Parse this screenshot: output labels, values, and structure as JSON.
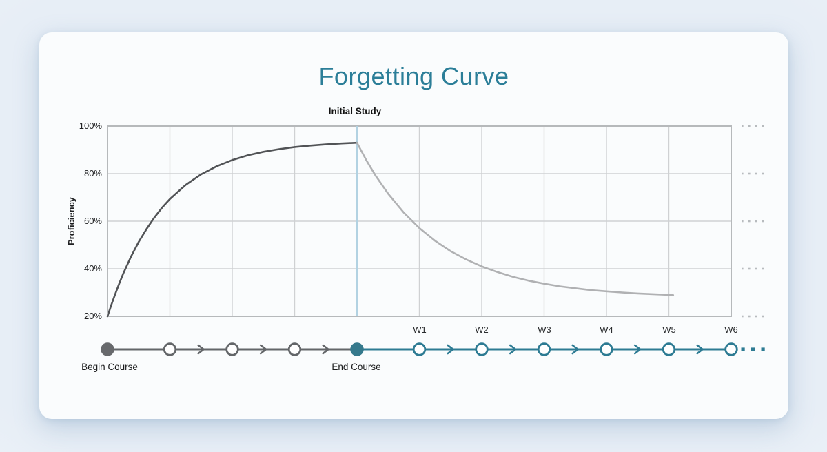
{
  "chart_data": {
    "type": "line",
    "title": "Forgetting Curve",
    "ylabel": "Proficiency",
    "ylim": [
      20,
      100
    ],
    "yticks": [
      "100%",
      "80%",
      "60%",
      "40%",
      "20%"
    ],
    "ytick_values": [
      100,
      80,
      60,
      40,
      20
    ],
    "grid": true,
    "annotation": "Initial Study",
    "annotation_x_unit": 4,
    "x_axis_note": "x in grid-column units: 0 = course start, 4 = Initial Study / End Course, 5..10 = W1..W6",
    "week_labels": [
      "W1",
      "W2",
      "W3",
      "W4",
      "W5",
      "W6"
    ],
    "series": [
      {
        "name": "learning-curve",
        "color": "#515356",
        "points": [
          [
            0,
            20
          ],
          [
            0.06,
            24.7
          ],
          [
            0.12,
            29.1
          ],
          [
            0.19,
            33.9
          ],
          [
            0.25,
            37.8
          ],
          [
            0.375,
            45.0
          ],
          [
            0.5,
            51.3
          ],
          [
            0.625,
            56.7
          ],
          [
            0.75,
            61.5
          ],
          [
            0.875,
            65.7
          ],
          [
            1,
            69.3
          ],
          [
            1.25,
            75.2
          ],
          [
            1.5,
            79.7
          ],
          [
            1.75,
            83.1
          ],
          [
            2,
            85.7
          ],
          [
            2.25,
            87.7
          ],
          [
            2.5,
            89.2
          ],
          [
            2.75,
            90.3
          ],
          [
            3,
            91.2
          ],
          [
            3.25,
            91.8
          ],
          [
            3.5,
            92.3
          ],
          [
            3.75,
            92.7
          ],
          [
            4,
            93
          ]
        ]
      },
      {
        "name": "forgetting-curve",
        "color": "#b0b1b3",
        "points": [
          [
            4,
            93
          ],
          [
            4.15,
            85.6
          ],
          [
            4.3,
            79.1
          ],
          [
            4.5,
            71.5
          ],
          [
            4.75,
            63.6
          ],
          [
            5,
            57.1
          ],
          [
            5.25,
            51.8
          ],
          [
            5.5,
            47.4
          ],
          [
            5.75,
            43.9
          ],
          [
            6,
            41.0
          ],
          [
            6.25,
            38.6
          ],
          [
            6.5,
            36.6
          ],
          [
            6.75,
            35.0
          ],
          [
            7,
            33.7
          ],
          [
            7.25,
            32.6
          ],
          [
            7.5,
            31.8
          ],
          [
            7.75,
            31.0
          ],
          [
            8,
            30.5
          ],
          [
            8.25,
            30.0
          ],
          [
            8.5,
            29.6
          ],
          [
            8.75,
            29.3
          ],
          [
            9,
            29.0
          ],
          [
            9.07,
            28.9
          ]
        ]
      }
    ],
    "timeline": {
      "begin_label": "Begin Course",
      "end_label": "End Course",
      "course_node_units": [
        0,
        1,
        2,
        3,
        4
      ],
      "week_node_units": [
        5,
        6,
        7,
        8,
        9,
        10
      ],
      "course_chevron_units": [
        1.5,
        2.5,
        3.5
      ],
      "week_chevron_units": [
        5.5,
        6.5,
        7.5,
        8.5,
        9.5
      ],
      "continuation_dots": 3
    }
  },
  "colors": {
    "title": "#2b7e98",
    "teal": "#2d7b93",
    "teal_fill": "#35798c",
    "course_gray": "#636669",
    "course_fill": "#67696c",
    "study_marker": "#b2d2e2",
    "grid_line": "#cfd1d3",
    "grid_border": "#b6b9bb",
    "edge_dots": "#b7bbbe",
    "card_bg": "#fafcfd",
    "page_bg": "#e8eff7"
  }
}
